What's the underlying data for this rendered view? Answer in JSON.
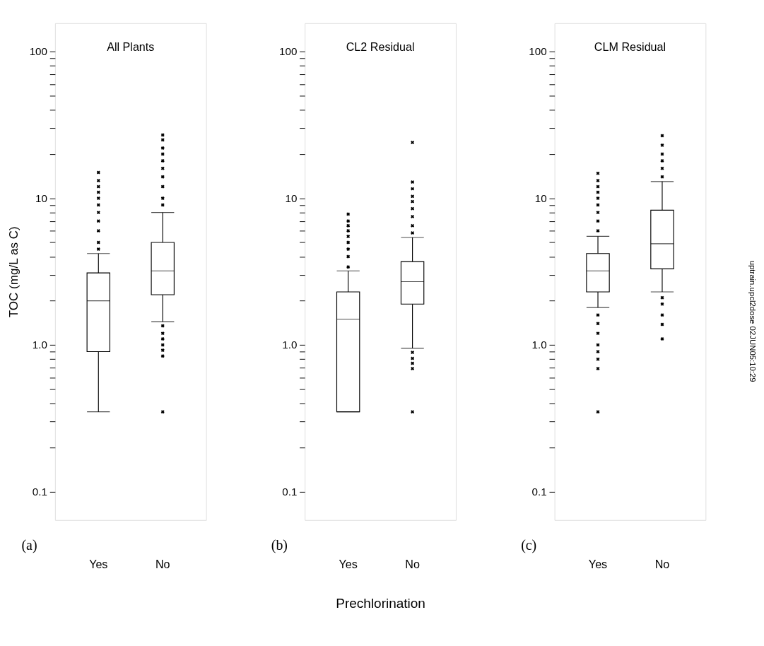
{
  "chart_data": [
    {
      "type": "box",
      "title": "All Plants",
      "ylabel": "TOC (mg/L as C)",
      "categories": [
        "Yes",
        "No"
      ],
      "log": true,
      "marker": "cross",
      "ylim": [
        0.064,
        156
      ],
      "yticks": [
        0.1,
        {
          "value": 0.2,
          "label": null
        },
        {
          "value": 0.3,
          "label": null
        },
        {
          "value": 0.4,
          "label": null
        },
        {
          "value": 0.5,
          "label": null
        },
        {
          "value": 0.6,
          "label": null
        },
        {
          "value": 0.7,
          "label": null
        },
        {
          "value": 0.8,
          "label": null
        },
        {
          "value": 0.9,
          "label": null
        },
        {
          "value": 1,
          "label": "1.0"
        },
        {
          "value": 2,
          "label": null
        },
        {
          "value": 3,
          "label": null
        },
        {
          "value": 4,
          "label": null
        },
        {
          "value": 5,
          "label": null
        },
        {
          "value": 6,
          "label": null
        },
        {
          "value": 7,
          "label": null
        },
        {
          "value": 8,
          "label": null
        },
        {
          "value": 9,
          "label": null
        },
        10,
        {
          "value": 20,
          "label": null
        },
        {
          "value": 30,
          "label": null
        },
        {
          "value": 40,
          "label": null
        },
        {
          "value": 50,
          "label": null
        },
        {
          "value": 60,
          "label": null
        },
        {
          "value": 70,
          "label": null
        },
        {
          "value": 80,
          "label": null
        },
        {
          "value": 90,
          "label": null
        },
        100
      ],
      "boxes": [
        {
          "low": 0.35,
          "q1": 0.9,
          "median": 2.0,
          "q3": 3.1,
          "high": 4.2,
          "outliers": [
            4.5,
            5,
            6,
            7,
            8,
            9,
            10,
            11,
            12,
            13.2,
            15
          ]
        },
        {
          "low": 1.44,
          "q1": 2.2,
          "median": 3.2,
          "q3": 5.0,
          "high": 8.0,
          "outliers": [
            0.35,
            0.84,
            0.92,
            1.0,
            1.1,
            1.2,
            1.35,
            9,
            10,
            12,
            14,
            16,
            18,
            20,
            22,
            25,
            27
          ]
        }
      ],
      "annotations": [
        "(a)"
      ]
    },
    {
      "type": "box",
      "title": "CL2 Residual",
      "xlabel": "Prechlorination",
      "categories": [
        "Yes",
        "No"
      ],
      "log": true,
      "marker": "cross",
      "ylim": [
        0.064,
        156
      ],
      "yticks": [
        0.1,
        {
          "value": 0.2,
          "label": null
        },
        {
          "value": 0.3,
          "label": null
        },
        {
          "value": 0.4,
          "label": null
        },
        {
          "value": 0.5,
          "label": null
        },
        {
          "value": 0.6,
          "label": null
        },
        {
          "value": 0.7,
          "label": null
        },
        {
          "value": 0.8,
          "label": null
        },
        {
          "value": 0.9,
          "label": null
        },
        {
          "value": 1,
          "label": "1.0"
        },
        {
          "value": 2,
          "label": null
        },
        {
          "value": 3,
          "label": null
        },
        {
          "value": 4,
          "label": null
        },
        {
          "value": 5,
          "label": null
        },
        {
          "value": 6,
          "label": null
        },
        {
          "value": 7,
          "label": null
        },
        {
          "value": 8,
          "label": null
        },
        {
          "value": 9,
          "label": null
        },
        10,
        {
          "value": 20,
          "label": null
        },
        {
          "value": 30,
          "label": null
        },
        {
          "value": 40,
          "label": null
        },
        {
          "value": 50,
          "label": null
        },
        {
          "value": 60,
          "label": null
        },
        {
          "value": 70,
          "label": null
        },
        {
          "value": 80,
          "label": null
        },
        {
          "value": 90,
          "label": null
        },
        100
      ],
      "boxes": [
        {
          "low": 0.35,
          "q1": 0.35,
          "median": 1.5,
          "q3": 2.3,
          "high": 3.2,
          "outliers": [
            3.4,
            4,
            4.5,
            5,
            5.5,
            6,
            6.5,
            7,
            7.8
          ]
        },
        {
          "low": 0.95,
          "q1": 1.9,
          "median": 2.7,
          "q3": 3.7,
          "high": 5.4,
          "outliers": [
            0.35,
            0.69,
            0.75,
            0.81,
            0.89,
            5.8,
            6.5,
            7.5,
            8.5,
            9.5,
            10.3,
            11.6,
            12.9,
            24
          ]
        }
      ],
      "annotations": [
        "(b)"
      ]
    },
    {
      "type": "box",
      "title": "CLM Residual",
      "categories": [
        "Yes",
        "No"
      ],
      "log": true,
      "marker": "cross",
      "ylim": [
        0.064,
        156
      ],
      "yticks": [
        0.1,
        {
          "value": 0.2,
          "label": null
        },
        {
          "value": 0.3,
          "label": null
        },
        {
          "value": 0.4,
          "label": null
        },
        {
          "value": 0.5,
          "label": null
        },
        {
          "value": 0.6,
          "label": null
        },
        {
          "value": 0.7,
          "label": null
        },
        {
          "value": 0.8,
          "label": null
        },
        {
          "value": 0.9,
          "label": null
        },
        {
          "value": 1,
          "label": "1.0"
        },
        {
          "value": 2,
          "label": null
        },
        {
          "value": 3,
          "label": null
        },
        {
          "value": 4,
          "label": null
        },
        {
          "value": 5,
          "label": null
        },
        {
          "value": 6,
          "label": null
        },
        {
          "value": 7,
          "label": null
        },
        {
          "value": 8,
          "label": null
        },
        {
          "value": 9,
          "label": null
        },
        10,
        {
          "value": 20,
          "label": null
        },
        {
          "value": 30,
          "label": null
        },
        {
          "value": 40,
          "label": null
        },
        {
          "value": 50,
          "label": null
        },
        {
          "value": 60,
          "label": null
        },
        {
          "value": 70,
          "label": null
        },
        {
          "value": 80,
          "label": null
        },
        {
          "value": 90,
          "label": null
        },
        100
      ],
      "boxes": [
        {
          "low": 1.8,
          "q1": 2.3,
          "median": 3.2,
          "q3": 4.2,
          "high": 5.5,
          "outliers": [
            0.35,
            0.69,
            0.8,
            0.9,
            1.0,
            1.2,
            1.4,
            1.6,
            6,
            7,
            8,
            9,
            10,
            11,
            12,
            13.2,
            14.8
          ]
        },
        {
          "low": 2.3,
          "q1": 3.3,
          "median": 4.9,
          "q3": 8.3,
          "high": 13.0,
          "outliers": [
            1.1,
            1.38,
            1.6,
            1.9,
            2.1,
            14,
            16,
            18,
            20,
            23,
            26.7
          ]
        }
      ],
      "annotations": [
        "(c)",
        "uptrain.upcl2dose 02JUN05:10:29"
      ]
    }
  ]
}
